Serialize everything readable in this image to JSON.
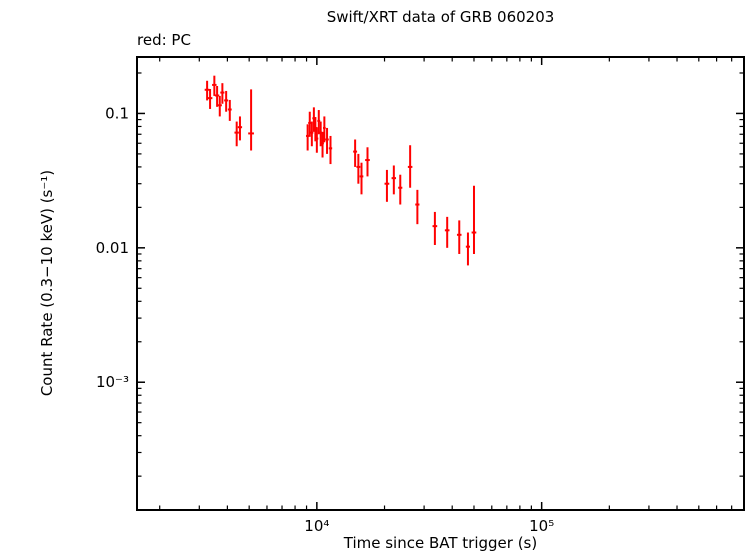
{
  "chart_data": {
    "type": "scatter",
    "title": "Swift/XRT data of GRB 060203",
    "legend": "red: PC",
    "legend_position": "top-left",
    "xlabel": "Time since BAT trigger (s)",
    "ylabel": "Count Rate (0.3−10 keV) (s⁻¹)",
    "x_scale": "log",
    "y_scale": "log",
    "grid": false,
    "xlim": [
      1585,
      794328
    ],
    "ylim": [
      0.000112,
      0.263
    ],
    "x_ticks": [
      {
        "value": 10000,
        "label": "10⁴"
      },
      {
        "value": 100000,
        "label": "10⁵"
      }
    ],
    "y_ticks": [
      {
        "value": 0.1,
        "label": "0.1"
      },
      {
        "value": 0.01,
        "label": "0.01"
      },
      {
        "value": 0.001,
        "label": "10⁻³"
      }
    ],
    "series": [
      {
        "name": "PC",
        "color": "#ff0000",
        "marker": "cross-errorbar",
        "points": [
          {
            "t": 3250,
            "dt": 80,
            "rate": 0.15,
            "err_lo": 0.025,
            "err_hi": 0.025
          },
          {
            "t": 3350,
            "dt": 80,
            "rate": 0.13,
            "err_lo": 0.022,
            "err_hi": 0.022
          },
          {
            "t": 3500,
            "dt": 80,
            "rate": 0.163,
            "err_lo": 0.028,
            "err_hi": 0.028
          },
          {
            "t": 3600,
            "dt": 80,
            "rate": 0.136,
            "err_lo": 0.024,
            "err_hi": 0.024
          },
          {
            "t": 3700,
            "dt": 80,
            "rate": 0.115,
            "err_lo": 0.02,
            "err_hi": 0.02
          },
          {
            "t": 3800,
            "dt": 80,
            "rate": 0.143,
            "err_lo": 0.025,
            "err_hi": 0.025
          },
          {
            "t": 3950,
            "dt": 80,
            "rate": 0.125,
            "err_lo": 0.022,
            "err_hi": 0.022
          },
          {
            "t": 4100,
            "dt": 80,
            "rate": 0.107,
            "err_lo": 0.019,
            "err_hi": 0.019
          },
          {
            "t": 4400,
            "dt": 100,
            "rate": 0.072,
            "err_lo": 0.015,
            "err_hi": 0.015
          },
          {
            "t": 4550,
            "dt": 100,
            "rate": 0.079,
            "err_lo": 0.016,
            "err_hi": 0.016
          },
          {
            "t": 5100,
            "dt": 150,
            "rate": 0.071,
            "err_lo": 0.018,
            "err_hi": 0.08
          },
          {
            "t": 9100,
            "dt": 150,
            "rate": 0.068,
            "err_lo": 0.015,
            "err_hi": 0.015
          },
          {
            "t": 9300,
            "dt": 150,
            "rate": 0.085,
            "err_lo": 0.018,
            "err_hi": 0.018
          },
          {
            "t": 9500,
            "dt": 150,
            "rate": 0.072,
            "err_lo": 0.015,
            "err_hi": 0.015
          },
          {
            "t": 9700,
            "dt": 150,
            "rate": 0.092,
            "err_lo": 0.019,
            "err_hi": 0.019
          },
          {
            "t": 9850,
            "dt": 150,
            "rate": 0.078,
            "err_lo": 0.016,
            "err_hi": 0.016
          },
          {
            "t": 10000,
            "dt": 150,
            "rate": 0.065,
            "err_lo": 0.014,
            "err_hi": 0.014
          },
          {
            "t": 10200,
            "dt": 150,
            "rate": 0.088,
            "err_lo": 0.018,
            "err_hi": 0.018
          },
          {
            "t": 10400,
            "dt": 150,
            "rate": 0.072,
            "err_lo": 0.015,
            "err_hi": 0.015
          },
          {
            "t": 10600,
            "dt": 150,
            "rate": 0.06,
            "err_lo": 0.013,
            "err_hi": 0.013
          },
          {
            "t": 10800,
            "dt": 150,
            "rate": 0.078,
            "err_lo": 0.017,
            "err_hi": 0.017
          },
          {
            "t": 11100,
            "dt": 200,
            "rate": 0.064,
            "err_lo": 0.014,
            "err_hi": 0.014
          },
          {
            "t": 11500,
            "dt": 200,
            "rate": 0.055,
            "err_lo": 0.013,
            "err_hi": 0.013
          },
          {
            "t": 14800,
            "dt": 300,
            "rate": 0.052,
            "err_lo": 0.012,
            "err_hi": 0.012
          },
          {
            "t": 15300,
            "dt": 300,
            "rate": 0.04,
            "err_lo": 0.01,
            "err_hi": 0.01
          },
          {
            "t": 15800,
            "dt": 300,
            "rate": 0.034,
            "err_lo": 0.009,
            "err_hi": 0.009
          },
          {
            "t": 16800,
            "dt": 400,
            "rate": 0.045,
            "err_lo": 0.011,
            "err_hi": 0.011
          },
          {
            "t": 20500,
            "dt": 500,
            "rate": 0.03,
            "err_lo": 0.008,
            "err_hi": 0.008
          },
          {
            "t": 22000,
            "dt": 500,
            "rate": 0.033,
            "err_lo": 0.008,
            "err_hi": 0.008
          },
          {
            "t": 23500,
            "dt": 500,
            "rate": 0.028,
            "err_lo": 0.007,
            "err_hi": 0.007
          },
          {
            "t": 26000,
            "dt": 600,
            "rate": 0.04,
            "err_lo": 0.012,
            "err_hi": 0.018
          },
          {
            "t": 28000,
            "dt": 600,
            "rate": 0.021,
            "err_lo": 0.006,
            "err_hi": 0.006
          },
          {
            "t": 33500,
            "dt": 800,
            "rate": 0.0145,
            "err_lo": 0.004,
            "err_hi": 0.004
          },
          {
            "t": 38000,
            "dt": 900,
            "rate": 0.0135,
            "err_lo": 0.0035,
            "err_hi": 0.0035
          },
          {
            "t": 43000,
            "dt": 1000,
            "rate": 0.0125,
            "err_lo": 0.0035,
            "err_hi": 0.0035
          },
          {
            "t": 47000,
            "dt": 1000,
            "rate": 0.0102,
            "err_lo": 0.0028,
            "err_hi": 0.0028
          },
          {
            "t": 50000,
            "dt": 1200,
            "rate": 0.013,
            "err_lo": 0.004,
            "err_hi": 0.016
          }
        ]
      }
    ]
  }
}
